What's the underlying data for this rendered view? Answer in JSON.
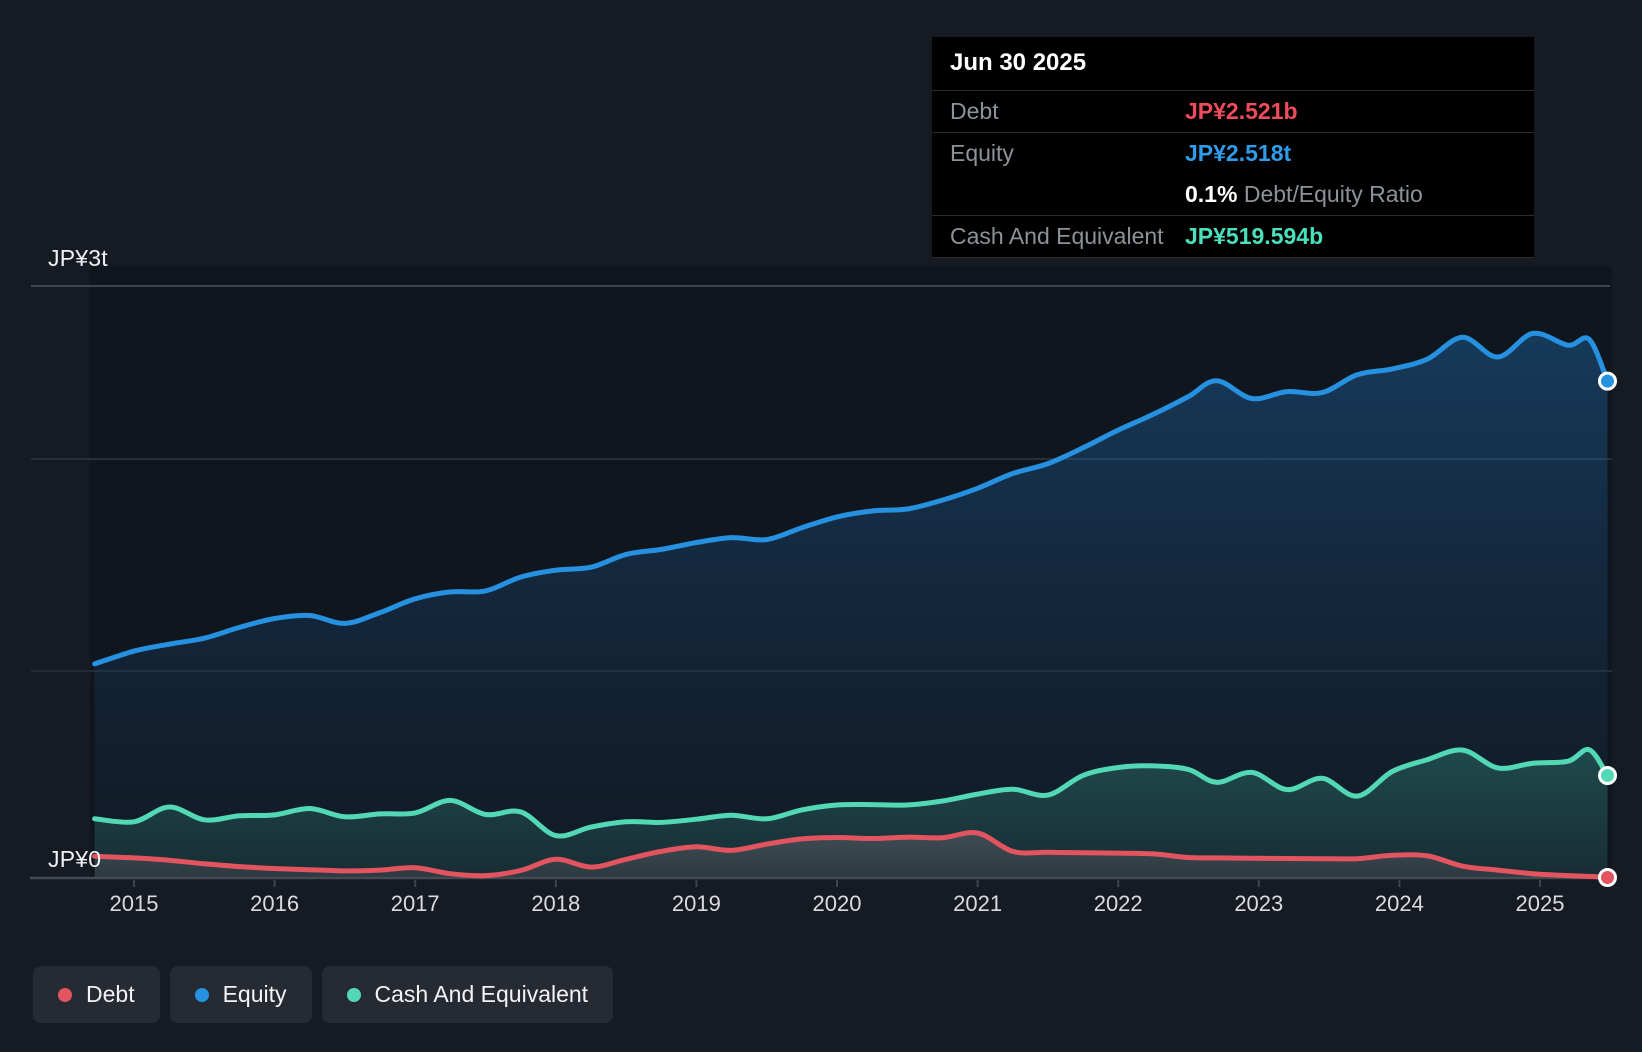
{
  "colors": {
    "background": "#161b23",
    "debt": "#e2545f",
    "equity": "#2691e0",
    "cash": "#53d8b6",
    "tooltip_debt": "#f04c5c",
    "tooltip_equity": "#2f9ceb",
    "tooltip_cash": "#4adfbd"
  },
  "y_axis": {
    "top_label": "JP¥3t",
    "zero_label": "JP¥0"
  },
  "x_axis": {
    "tick_labels": [
      "2015",
      "2016",
      "2017",
      "2018",
      "2019",
      "2020",
      "2021",
      "2022",
      "2023",
      "2024",
      "2025"
    ]
  },
  "tooltip": {
    "date": "Jun 30 2025",
    "rows": [
      {
        "label": "Debt",
        "value": "JP¥2.521b",
        "color_key": "tooltip_debt"
      },
      {
        "label": "Equity",
        "value": "JP¥2.518t",
        "color_key": "tooltip_equity",
        "sub": {
          "bold": "0.1%",
          "text": "Debt/Equity Ratio"
        }
      },
      {
        "label": "Cash And Equivalent",
        "value": "JP¥519.594b",
        "color_key": "tooltip_cash"
      }
    ]
  },
  "legend": {
    "items": [
      {
        "label": "Debt",
        "color_key": "debt"
      },
      {
        "label": "Equity",
        "color_key": "equity"
      },
      {
        "label": "Cash And Equivalent",
        "color_key": "cash"
      }
    ]
  },
  "chart_data": {
    "type": "area",
    "unit": "JP¥ billions",
    "x_unit": "year (decimal)",
    "x_range": [
      2014.72,
      2025.48
    ],
    "ylim": [
      0,
      3000
    ],
    "y_tick_labels": [
      {
        "value": 3000,
        "label": "JP¥3t"
      },
      {
        "value": 0,
        "label": "JP¥0"
      }
    ],
    "x_ticks": [
      2015,
      2016,
      2017,
      2018,
      2019,
      2020,
      2021,
      2022,
      2023,
      2024,
      2025
    ],
    "grid": "horizontal",
    "legend_position": "bottom-left",
    "x": [
      2014.72,
      2015.0,
      2015.25,
      2015.5,
      2015.75,
      2016.0,
      2016.25,
      2016.5,
      2016.75,
      2017.0,
      2017.25,
      2017.5,
      2017.75,
      2018.0,
      2018.25,
      2018.5,
      2018.75,
      2019.0,
      2019.25,
      2019.5,
      2019.75,
      2020.0,
      2020.25,
      2020.5,
      2020.75,
      2021.0,
      2021.25,
      2021.5,
      2021.75,
      2022.0,
      2022.25,
      2022.5,
      2022.7,
      2022.95,
      2023.2,
      2023.45,
      2023.7,
      2023.95,
      2024.2,
      2024.45,
      2024.7,
      2024.95,
      2025.2,
      2025.35,
      2025.48
    ],
    "series": [
      {
        "name": "Equity",
        "color_key": "equity",
        "end_label": "JP¥2.518t",
        "values": [
          1085,
          1150,
          1185,
          1215,
          1270,
          1315,
          1330,
          1290,
          1345,
          1415,
          1450,
          1455,
          1525,
          1560,
          1575,
          1640,
          1665,
          1700,
          1725,
          1715,
          1775,
          1830,
          1860,
          1870,
          1915,
          1975,
          2050,
          2100,
          2180,
          2270,
          2350,
          2440,
          2520,
          2430,
          2465,
          2460,
          2550,
          2580,
          2630,
          2740,
          2640,
          2760,
          2700,
          2730,
          2518
        ]
      },
      {
        "name": "Cash And Equivalent",
        "color_key": "cash",
        "end_label": "JP¥519.594b",
        "values": [
          300,
          285,
          360,
          295,
          315,
          320,
          352,
          310,
          325,
          330,
          393,
          322,
          335,
          215,
          258,
          285,
          282,
          298,
          318,
          300,
          345,
          370,
          372,
          370,
          390,
          425,
          450,
          420,
          520,
          560,
          568,
          550,
          485,
          535,
          448,
          505,
          415,
          540,
          600,
          648,
          558,
          582,
          592,
          650,
          519.594
        ]
      },
      {
        "name": "Debt",
        "color_key": "debt",
        "end_label": "JP¥2.521b",
        "values": [
          110,
          102,
          90,
          72,
          58,
          48,
          42,
          36,
          40,
          52,
          22,
          12,
          38,
          95,
          55,
          95,
          135,
          158,
          140,
          172,
          198,
          205,
          200,
          207,
          204,
          228,
          135,
          130,
          128,
          126,
          122,
          104,
          102,
          100,
          99,
          98,
          98,
          115,
          112,
          60,
          40,
          22,
          12,
          8,
          2.521
        ]
      }
    ]
  }
}
